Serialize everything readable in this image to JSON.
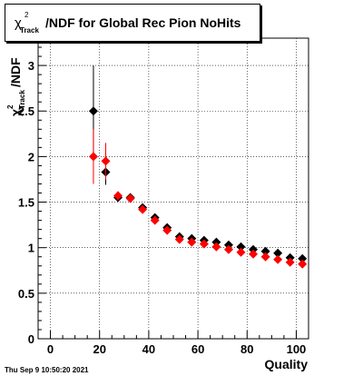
{
  "chart_data": {
    "type": "scatter",
    "title": {
      "chi": "χ",
      "sup": "2",
      "sub": "Track",
      "rest": "/NDF for Global Rec Pion NoHits"
    },
    "ylabel": {
      "chi": "χ",
      "sup": "2",
      "sub": "Track",
      "rest": "/NDF"
    },
    "xlabel": "Quality",
    "xlim": [
      -5,
      105
    ],
    "ylim": [
      0,
      3.3
    ],
    "x_ticks": [
      0,
      20,
      40,
      60,
      80,
      100
    ],
    "x_tick_labels": [
      "0",
      "20",
      "40",
      "60",
      "80",
      "100"
    ],
    "y_ticks": [
      0,
      0.5,
      1,
      1.5,
      2,
      2.5,
      3
    ],
    "y_tick_labels": [
      "0",
      "0.5",
      "1",
      "1.5",
      "2",
      "2.5",
      "3"
    ],
    "grid": true,
    "series": [
      {
        "color": "#000000",
        "marker": "diamond",
        "points": [
          {
            "x": 17.5,
            "y": 2.5,
            "err": 0.5
          },
          {
            "x": 22.5,
            "y": 1.83,
            "err": 0.14
          },
          {
            "x": 27.5,
            "y": 1.55,
            "err": 0.04
          },
          {
            "x": 32.5,
            "y": 1.55,
            "err": 0.03
          },
          {
            "x": 37.5,
            "y": 1.44,
            "err": 0.03
          },
          {
            "x": 42.5,
            "y": 1.33,
            "err": 0.02
          },
          {
            "x": 47.5,
            "y": 1.22,
            "err": 0.02
          },
          {
            "x": 52.5,
            "y": 1.12,
            "err": 0.015
          },
          {
            "x": 57.5,
            "y": 1.1,
            "err": 0.015
          },
          {
            "x": 62.5,
            "y": 1.08,
            "err": 0.015
          },
          {
            "x": 67.5,
            "y": 1.06,
            "err": 0.01
          },
          {
            "x": 72.5,
            "y": 1.03,
            "err": 0.01
          },
          {
            "x": 77.5,
            "y": 1.01,
            "err": 0.01
          },
          {
            "x": 82.5,
            "y": 0.98,
            "err": 0.01
          },
          {
            "x": 87.5,
            "y": 0.96,
            "err": 0.01
          },
          {
            "x": 92.5,
            "y": 0.94,
            "err": 0.01
          },
          {
            "x": 97.5,
            "y": 0.89,
            "err": 0.01
          },
          {
            "x": 102.5,
            "y": 0.88,
            "err": 0.01
          }
        ]
      },
      {
        "color": "#ff0000",
        "marker": "diamond",
        "points": [
          {
            "x": 17.5,
            "y": 2.0,
            "err": 0.3
          },
          {
            "x": 22.5,
            "y": 1.95,
            "err": 0.2
          },
          {
            "x": 27.5,
            "y": 1.57,
            "err": 0.05
          },
          {
            "x": 32.5,
            "y": 1.54,
            "err": 0.03
          },
          {
            "x": 37.5,
            "y": 1.42,
            "err": 0.03
          },
          {
            "x": 42.5,
            "y": 1.3,
            "err": 0.02
          },
          {
            "x": 47.5,
            "y": 1.19,
            "err": 0.02
          },
          {
            "x": 52.5,
            "y": 1.09,
            "err": 0.015
          },
          {
            "x": 57.5,
            "y": 1.06,
            "err": 0.015
          },
          {
            "x": 62.5,
            "y": 1.04,
            "err": 0.015
          },
          {
            "x": 67.5,
            "y": 1.01,
            "err": 0.01
          },
          {
            "x": 72.5,
            "y": 0.98,
            "err": 0.01
          },
          {
            "x": 77.5,
            "y": 0.95,
            "err": 0.01
          },
          {
            "x": 82.5,
            "y": 0.93,
            "err": 0.01
          },
          {
            "x": 87.5,
            "y": 0.9,
            "err": 0.01
          },
          {
            "x": 92.5,
            "y": 0.87,
            "err": 0.01
          },
          {
            "x": 97.5,
            "y": 0.84,
            "err": 0.01
          },
          {
            "x": 102.5,
            "y": 0.82,
            "err": 0.01
          }
        ]
      }
    ]
  },
  "footer": "Thu Sep  9 10:50:20 2021"
}
